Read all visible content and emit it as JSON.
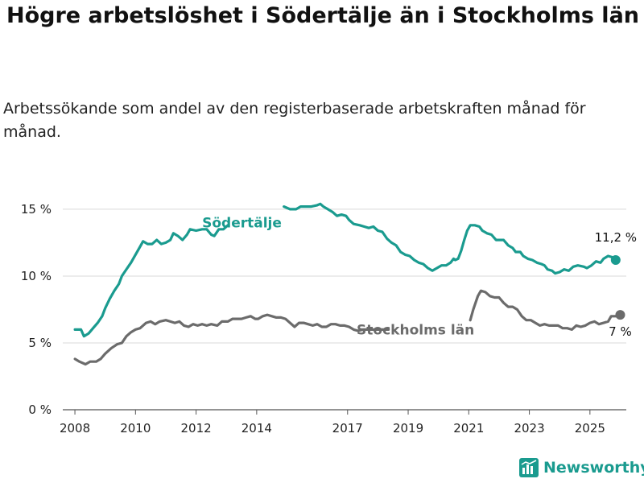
{
  "title": "Högre arbetslöshet i Södertälje än i Stockholms län",
  "subtitle": "Arbetssökande som andel av den registerbaserade arbetskraften månad för månad.",
  "brand": {
    "name": "Newsworthy",
    "color": "#1a9b8f",
    "icon": "newsworthy-logo-icon"
  },
  "chart_data": {
    "type": "line",
    "title": "Högre arbetslöshet i Södertälje än i Stockholms län",
    "subtitle": "Arbetssökande som andel av den registerbaserade arbetskraften månad för månad.",
    "xlabel": "",
    "ylabel": "",
    "xlim": [
      2007.6,
      2026.2
    ],
    "ylim": [
      0,
      16.5
    ],
    "x_ticks": [
      2008,
      2010,
      2012,
      2014,
      2017,
      2019,
      2021,
      2023,
      2025
    ],
    "y_ticks": [
      0,
      5,
      10,
      15
    ],
    "y_tick_labels": [
      "0 %",
      "5 %",
      "10 %",
      "15 %"
    ],
    "grid": "horizontal",
    "legend": "inline labels",
    "series": [
      {
        "name": "Södertälje",
        "color": "#1a9b8f",
        "end_label": "11,2 %",
        "points": [
          [
            2008.0,
            6.0
          ],
          [
            2008.2,
            6.0
          ],
          [
            2008.3,
            5.5
          ],
          [
            2008.45,
            5.7
          ],
          [
            2008.6,
            6.1
          ],
          [
            2008.75,
            6.5
          ],
          [
            2008.9,
            7.0
          ],
          [
            2009.0,
            7.6
          ],
          [
            2009.15,
            8.3
          ],
          [
            2009.3,
            8.9
          ],
          [
            2009.45,
            9.4
          ],
          [
            2009.55,
            10.0
          ],
          [
            2009.7,
            10.5
          ],
          [
            2009.85,
            11.0
          ],
          [
            2010.0,
            11.6
          ],
          [
            2010.15,
            12.2
          ],
          [
            2010.25,
            12.6
          ],
          [
            2010.4,
            12.4
          ],
          [
            2010.55,
            12.4
          ],
          [
            2010.7,
            12.7
          ],
          [
            2010.85,
            12.4
          ],
          [
            2011.0,
            12.5
          ],
          [
            2011.15,
            12.7
          ],
          [
            2011.25,
            13.2
          ],
          [
            2011.4,
            13.0
          ],
          [
            2011.55,
            12.7
          ],
          [
            2011.7,
            13.1
          ],
          [
            2011.8,
            13.5
          ],
          [
            2012.0,
            13.4
          ],
          [
            2012.2,
            13.5
          ],
          [
            2012.35,
            13.5
          ],
          [
            2012.5,
            13.1
          ],
          [
            2012.6,
            13.0
          ],
          [
            2012.75,
            13.5
          ],
          [
            2012.9,
            13.5
          ],
          [
            2013.05,
            13.8
          ],
          null,
          [
            2014.9,
            15.2
          ],
          [
            2015.1,
            15.0
          ],
          [
            2015.3,
            15.0
          ],
          [
            2015.45,
            15.2
          ],
          [
            2015.6,
            15.2
          ],
          [
            2015.8,
            15.2
          ],
          [
            2016.0,
            15.3
          ],
          [
            2016.1,
            15.4
          ],
          [
            2016.2,
            15.2
          ],
          [
            2016.35,
            15.0
          ],
          [
            2016.5,
            14.8
          ],
          [
            2016.65,
            14.5
          ],
          [
            2016.8,
            14.6
          ],
          [
            2016.95,
            14.5
          ],
          [
            2017.05,
            14.2
          ],
          [
            2017.2,
            13.9
          ],
          [
            2017.4,
            13.8
          ],
          [
            2017.55,
            13.7
          ],
          [
            2017.7,
            13.6
          ],
          [
            2017.85,
            13.7
          ],
          [
            2018.0,
            13.4
          ],
          [
            2018.15,
            13.3
          ],
          [
            2018.3,
            12.8
          ],
          [
            2018.45,
            12.5
          ],
          [
            2018.6,
            12.3
          ],
          [
            2018.75,
            11.8
          ],
          [
            2018.9,
            11.6
          ],
          [
            2019.05,
            11.5
          ],
          [
            2019.2,
            11.2
          ],
          [
            2019.35,
            11.0
          ],
          [
            2019.5,
            10.9
          ],
          [
            2019.65,
            10.6
          ],
          [
            2019.8,
            10.4
          ],
          [
            2019.95,
            10.6
          ],
          [
            2020.1,
            10.8
          ],
          [
            2020.25,
            10.8
          ],
          [
            2020.4,
            11.0
          ],
          [
            2020.5,
            11.3
          ],
          [
            2020.55,
            11.2
          ],
          [
            2020.65,
            11.3
          ],
          [
            2020.75,
            11.9
          ],
          [
            2020.85,
            12.7
          ],
          [
            2020.95,
            13.4
          ],
          [
            2021.05,
            13.8
          ],
          [
            2021.2,
            13.8
          ],
          [
            2021.35,
            13.7
          ],
          [
            2021.45,
            13.4
          ],
          [
            2021.6,
            13.2
          ],
          [
            2021.75,
            13.1
          ],
          [
            2021.9,
            12.7
          ],
          [
            2022.0,
            12.7
          ],
          [
            2022.15,
            12.7
          ],
          [
            2022.3,
            12.3
          ],
          [
            2022.45,
            12.1
          ],
          [
            2022.55,
            11.8
          ],
          [
            2022.7,
            11.8
          ],
          [
            2022.8,
            11.5
          ],
          [
            2022.95,
            11.3
          ],
          [
            2023.1,
            11.2
          ],
          [
            2023.25,
            11.0
          ],
          [
            2023.4,
            10.9
          ],
          [
            2023.5,
            10.8
          ],
          [
            2023.6,
            10.5
          ],
          [
            2023.75,
            10.4
          ],
          [
            2023.85,
            10.2
          ],
          [
            2024.0,
            10.3
          ],
          [
            2024.15,
            10.5
          ],
          [
            2024.3,
            10.4
          ],
          [
            2024.45,
            10.7
          ],
          [
            2024.6,
            10.8
          ],
          [
            2024.8,
            10.7
          ],
          [
            2024.9,
            10.6
          ],
          [
            2025.05,
            10.8
          ],
          [
            2025.2,
            11.1
          ],
          [
            2025.35,
            11.0
          ],
          [
            2025.45,
            11.3
          ],
          [
            2025.6,
            11.5
          ],
          [
            2025.75,
            11.4
          ],
          [
            2025.85,
            11.2
          ]
        ]
      },
      {
        "name": "Stockholms län",
        "color": "#6b6b6b",
        "end_label": "7 %",
        "points": [
          [
            2008.0,
            3.8
          ],
          [
            2008.15,
            3.6
          ],
          [
            2008.35,
            3.4
          ],
          [
            2008.5,
            3.6
          ],
          [
            2008.7,
            3.6
          ],
          [
            2008.85,
            3.8
          ],
          [
            2009.0,
            4.2
          ],
          [
            2009.2,
            4.6
          ],
          [
            2009.4,
            4.9
          ],
          [
            2009.55,
            5.0
          ],
          [
            2009.7,
            5.5
          ],
          [
            2009.85,
            5.8
          ],
          [
            2010.0,
            6.0
          ],
          [
            2010.15,
            6.1
          ],
          [
            2010.35,
            6.5
          ],
          [
            2010.5,
            6.6
          ],
          [
            2010.65,
            6.4
          ],
          [
            2010.8,
            6.6
          ],
          [
            2011.0,
            6.7
          ],
          [
            2011.15,
            6.6
          ],
          [
            2011.3,
            6.5
          ],
          [
            2011.45,
            6.6
          ],
          [
            2011.6,
            6.3
          ],
          [
            2011.75,
            6.2
          ],
          [
            2011.9,
            6.4
          ],
          [
            2012.05,
            6.3
          ],
          [
            2012.2,
            6.4
          ],
          [
            2012.35,
            6.3
          ],
          [
            2012.5,
            6.4
          ],
          [
            2012.7,
            6.3
          ],
          [
            2012.85,
            6.6
          ],
          [
            2013.05,
            6.6
          ],
          [
            2013.2,
            6.8
          ],
          [
            2013.35,
            6.8
          ],
          [
            2013.5,
            6.8
          ],
          [
            2013.65,
            6.9
          ],
          [
            2013.8,
            7.0
          ],
          [
            2013.95,
            6.8
          ],
          [
            2014.05,
            6.8
          ],
          [
            2014.2,
            7.0
          ],
          [
            2014.35,
            7.1
          ],
          [
            2014.5,
            7.0
          ],
          [
            2014.65,
            6.9
          ],
          [
            2014.8,
            6.9
          ],
          [
            2014.95,
            6.8
          ],
          [
            2015.1,
            6.5
          ],
          [
            2015.25,
            6.2
          ],
          [
            2015.4,
            6.5
          ],
          [
            2015.55,
            6.5
          ],
          [
            2015.7,
            6.4
          ],
          [
            2015.85,
            6.3
          ],
          [
            2016.0,
            6.4
          ],
          [
            2016.15,
            6.2
          ],
          [
            2016.3,
            6.2
          ],
          [
            2016.45,
            6.4
          ],
          [
            2016.6,
            6.4
          ],
          [
            2016.75,
            6.3
          ],
          [
            2016.9,
            6.3
          ],
          [
            2017.05,
            6.2
          ],
          [
            2017.2,
            6.0
          ],
          [
            2017.35,
            5.9
          ],
          [
            2017.5,
            6.0
          ],
          [
            2017.65,
            6.0
          ],
          [
            2017.8,
            6.0
          ],
          [
            2017.95,
            6.0
          ],
          [
            2018.1,
            6.0
          ],
          [
            2018.25,
            6.0
          ],
          [
            2018.35,
            6.0
          ],
          null,
          [
            2021.05,
            6.7
          ],
          [
            2021.15,
            7.5
          ],
          [
            2021.3,
            8.5
          ],
          [
            2021.4,
            8.9
          ],
          [
            2021.55,
            8.8
          ],
          [
            2021.7,
            8.5
          ],
          [
            2021.85,
            8.4
          ],
          [
            2022.0,
            8.4
          ],
          [
            2022.15,
            8.0
          ],
          [
            2022.3,
            7.7
          ],
          [
            2022.45,
            7.7
          ],
          [
            2022.6,
            7.5
          ],
          [
            2022.75,
            7.0
          ],
          [
            2022.9,
            6.7
          ],
          [
            2023.05,
            6.7
          ],
          [
            2023.2,
            6.5
          ],
          [
            2023.35,
            6.3
          ],
          [
            2023.5,
            6.4
          ],
          [
            2023.65,
            6.3
          ],
          [
            2023.8,
            6.3
          ],
          [
            2023.95,
            6.3
          ],
          [
            2024.1,
            6.1
          ],
          [
            2024.25,
            6.1
          ],
          [
            2024.4,
            6.0
          ],
          [
            2024.55,
            6.3
          ],
          [
            2024.7,
            6.2
          ],
          [
            2024.85,
            6.3
          ],
          [
            2025.0,
            6.5
          ],
          [
            2025.15,
            6.6
          ],
          [
            2025.3,
            6.4
          ],
          [
            2025.45,
            6.5
          ],
          [
            2025.6,
            6.6
          ],
          [
            2025.7,
            7.0
          ],
          [
            2025.85,
            7.0
          ],
          [
            2026.0,
            7.1
          ]
        ]
      }
    ]
  }
}
